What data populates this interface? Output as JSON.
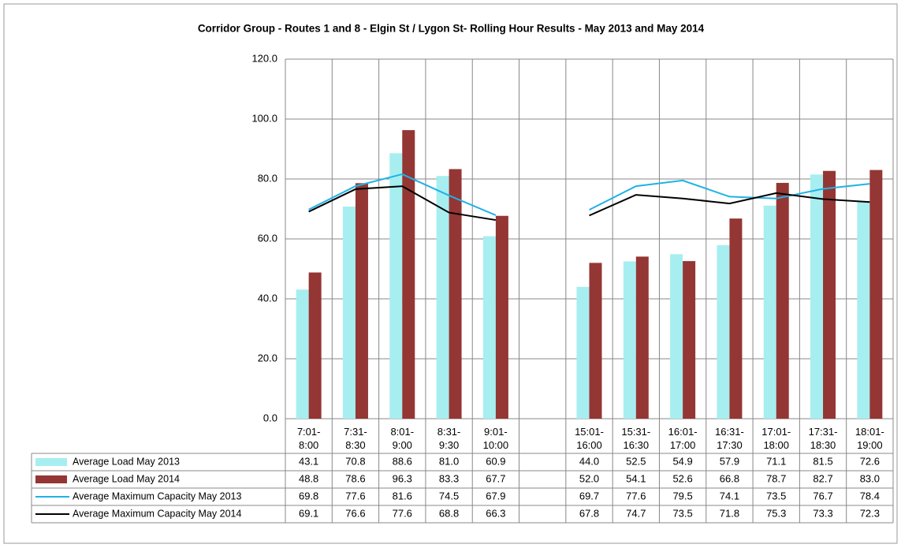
{
  "chart_data": {
    "type": "bar",
    "title": "Corridor Group - Routes 1 and 8 - Elgin St / Lygon St- Rolling Hour Results - May  2013 and May  2014",
    "categories": [
      "7:01-8:00",
      "7:31-8:30",
      "8:01-9:00",
      "8:31-9:30",
      "9:01-10:00",
      null,
      "15:01-16:00",
      "15:31-16:30",
      "16:01-17:00",
      "16:31-17:30",
      "17:01-18:00",
      "17:31-18:30",
      "18:01-19:00"
    ],
    "series": [
      {
        "name": "Average Load May 2013",
        "type": "bar",
        "color": "#a7eef0",
        "values": [
          43.1,
          70.8,
          88.6,
          81,
          60.9,
          null,
          44,
          52.5,
          54.9,
          57.9,
          71.1,
          81.5,
          72.6
        ],
        "value_labels": [
          "43.1",
          "70.8",
          "88.6",
          "81.0",
          "60.9",
          null,
          "44.0",
          "52.5",
          "54.9",
          "57.9",
          "71.1",
          "81.5",
          "72.6"
        ]
      },
      {
        "name": "Average Load May 2014",
        "type": "bar",
        "color": "#943634",
        "values": [
          48.8,
          78.6,
          96.3,
          83.3,
          67.7,
          null,
          52,
          54.1,
          52.6,
          66.8,
          78.7,
          82.7,
          83
        ],
        "value_labels": [
          "48.8",
          "78.6",
          "96.3",
          "83.3",
          "67.7",
          null,
          "52.0",
          "54.1",
          "52.6",
          "66.8",
          "78.7",
          "82.7",
          "83.0"
        ]
      },
      {
        "name": "Average Maximum Capacity May 2013",
        "type": "line",
        "color": "#1fb2e6",
        "values": [
          69.8,
          77.6,
          81.6,
          74.5,
          67.9,
          null,
          69.7,
          77.6,
          79.5,
          74.1,
          73.5,
          76.7,
          78.4
        ],
        "value_labels": [
          "69.8",
          "77.6",
          "81.6",
          "74.5",
          "67.9",
          null,
          "69.7",
          "77.6",
          "79.5",
          "74.1",
          "73.5",
          "76.7",
          "78.4"
        ]
      },
      {
        "name": "Average Maximum Capacity May 2014",
        "type": "line",
        "color": "#000000",
        "values": [
          69.1,
          76.6,
          77.6,
          68.8,
          66.3,
          null,
          67.8,
          74.7,
          73.5,
          71.8,
          75.3,
          73.3,
          72.3
        ],
        "value_labels": [
          "69.1",
          "76.6",
          "77.6",
          "68.8",
          "66.3",
          null,
          "67.8",
          "74.7",
          "73.5",
          "71.8",
          "75.3",
          "73.3",
          "72.3"
        ]
      }
    ],
    "ylim": [
      0,
      120
    ],
    "yticks": [
      {
        "value": 0,
        "label": "0.0"
      },
      {
        "value": 20,
        "label": "20.0"
      },
      {
        "value": 40,
        "label": "40.0"
      },
      {
        "value": 60,
        "label": "60.0"
      },
      {
        "value": 80,
        "label": "80.0"
      },
      {
        "value": 100,
        "label": "100.0"
      },
      {
        "value": 120,
        "label": "120.0"
      }
    ],
    "grid": true,
    "data_table": true
  }
}
